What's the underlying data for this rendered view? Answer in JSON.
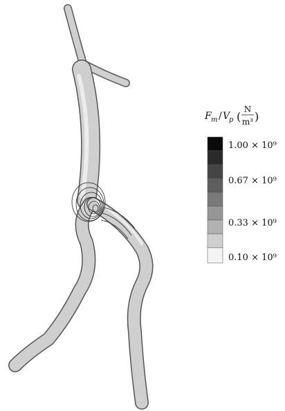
{
  "legend": {
    "title": {
      "numerator_symbol": "F",
      "numerator_subscript": "m",
      "denominator_symbol": "V",
      "denominator_subscript": "p",
      "unit_numerator": "N",
      "unit_denominator": "m³"
    },
    "ticks": [
      "1.00 × 10⁹",
      "0.67 × 10⁹",
      "0.33 × 10⁹",
      "0.10 × 10⁹"
    ]
  }
}
